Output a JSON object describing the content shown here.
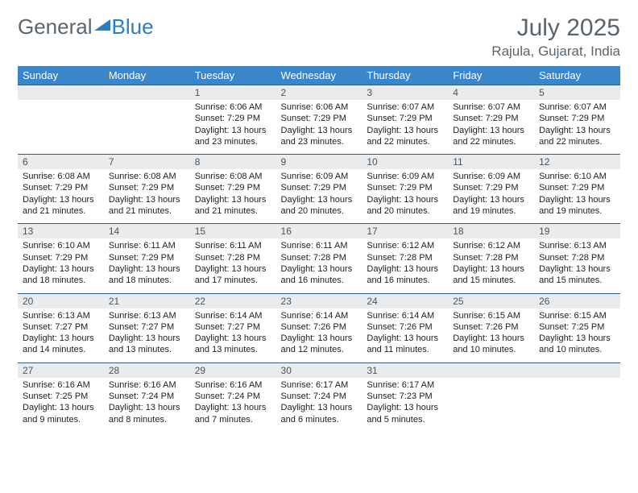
{
  "brand": {
    "part1": "General",
    "part2": "Blue"
  },
  "title": "July 2025",
  "location": "Rajula, Gujarat, India",
  "colors": {
    "header_bg": "#3b86c8",
    "header_text": "#ffffff",
    "row_border": "#2f5d8a",
    "daynum_bg": "#e9ebed",
    "text_muted": "#59646c"
  },
  "weekdays": [
    "Sunday",
    "Monday",
    "Tuesday",
    "Wednesday",
    "Thursday",
    "Friday",
    "Saturday"
  ],
  "weeks": [
    [
      null,
      null,
      {
        "n": "1",
        "sr": "6:06 AM",
        "ss": "7:29 PM",
        "dl": "13 hours and 23 minutes."
      },
      {
        "n": "2",
        "sr": "6:06 AM",
        "ss": "7:29 PM",
        "dl": "13 hours and 23 minutes."
      },
      {
        "n": "3",
        "sr": "6:07 AM",
        "ss": "7:29 PM",
        "dl": "13 hours and 22 minutes."
      },
      {
        "n": "4",
        "sr": "6:07 AM",
        "ss": "7:29 PM",
        "dl": "13 hours and 22 minutes."
      },
      {
        "n": "5",
        "sr": "6:07 AM",
        "ss": "7:29 PM",
        "dl": "13 hours and 22 minutes."
      }
    ],
    [
      {
        "n": "6",
        "sr": "6:08 AM",
        "ss": "7:29 PM",
        "dl": "13 hours and 21 minutes."
      },
      {
        "n": "7",
        "sr": "6:08 AM",
        "ss": "7:29 PM",
        "dl": "13 hours and 21 minutes."
      },
      {
        "n": "8",
        "sr": "6:08 AM",
        "ss": "7:29 PM",
        "dl": "13 hours and 21 minutes."
      },
      {
        "n": "9",
        "sr": "6:09 AM",
        "ss": "7:29 PM",
        "dl": "13 hours and 20 minutes."
      },
      {
        "n": "10",
        "sr": "6:09 AM",
        "ss": "7:29 PM",
        "dl": "13 hours and 20 minutes."
      },
      {
        "n": "11",
        "sr": "6:09 AM",
        "ss": "7:29 PM",
        "dl": "13 hours and 19 minutes."
      },
      {
        "n": "12",
        "sr": "6:10 AM",
        "ss": "7:29 PM",
        "dl": "13 hours and 19 minutes."
      }
    ],
    [
      {
        "n": "13",
        "sr": "6:10 AM",
        "ss": "7:29 PM",
        "dl": "13 hours and 18 minutes."
      },
      {
        "n": "14",
        "sr": "6:11 AM",
        "ss": "7:29 PM",
        "dl": "13 hours and 18 minutes."
      },
      {
        "n": "15",
        "sr": "6:11 AM",
        "ss": "7:28 PM",
        "dl": "13 hours and 17 minutes."
      },
      {
        "n": "16",
        "sr": "6:11 AM",
        "ss": "7:28 PM",
        "dl": "13 hours and 16 minutes."
      },
      {
        "n": "17",
        "sr": "6:12 AM",
        "ss": "7:28 PM",
        "dl": "13 hours and 16 minutes."
      },
      {
        "n": "18",
        "sr": "6:12 AM",
        "ss": "7:28 PM",
        "dl": "13 hours and 15 minutes."
      },
      {
        "n": "19",
        "sr": "6:13 AM",
        "ss": "7:28 PM",
        "dl": "13 hours and 15 minutes."
      }
    ],
    [
      {
        "n": "20",
        "sr": "6:13 AM",
        "ss": "7:27 PM",
        "dl": "13 hours and 14 minutes."
      },
      {
        "n": "21",
        "sr": "6:13 AM",
        "ss": "7:27 PM",
        "dl": "13 hours and 13 minutes."
      },
      {
        "n": "22",
        "sr": "6:14 AM",
        "ss": "7:27 PM",
        "dl": "13 hours and 13 minutes."
      },
      {
        "n": "23",
        "sr": "6:14 AM",
        "ss": "7:26 PM",
        "dl": "13 hours and 12 minutes."
      },
      {
        "n": "24",
        "sr": "6:14 AM",
        "ss": "7:26 PM",
        "dl": "13 hours and 11 minutes."
      },
      {
        "n": "25",
        "sr": "6:15 AM",
        "ss": "7:26 PM",
        "dl": "13 hours and 10 minutes."
      },
      {
        "n": "26",
        "sr": "6:15 AM",
        "ss": "7:25 PM",
        "dl": "13 hours and 10 minutes."
      }
    ],
    [
      {
        "n": "27",
        "sr": "6:16 AM",
        "ss": "7:25 PM",
        "dl": "13 hours and 9 minutes."
      },
      {
        "n": "28",
        "sr": "6:16 AM",
        "ss": "7:24 PM",
        "dl": "13 hours and 8 minutes."
      },
      {
        "n": "29",
        "sr": "6:16 AM",
        "ss": "7:24 PM",
        "dl": "13 hours and 7 minutes."
      },
      {
        "n": "30",
        "sr": "6:17 AM",
        "ss": "7:24 PM",
        "dl": "13 hours and 6 minutes."
      },
      {
        "n": "31",
        "sr": "6:17 AM",
        "ss": "7:23 PM",
        "dl": "13 hours and 5 minutes."
      },
      null,
      null
    ]
  ],
  "labels": {
    "sunrise": "Sunrise:",
    "sunset": "Sunset:",
    "daylight": "Daylight:"
  }
}
